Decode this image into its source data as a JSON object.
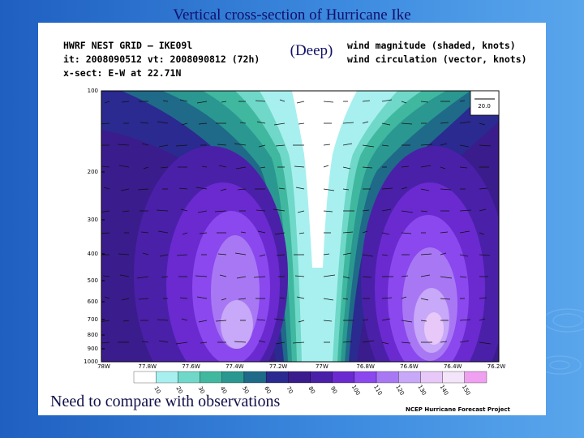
{
  "slide": {
    "title": "Vertical cross-section of Hurricane Ike",
    "subtitle": "(Deep)",
    "note": "Need to compare with observations"
  },
  "figure": {
    "header_left": [
      "HWRF NEST GRID – IKE09l",
      "it: 2008090512  vt: 2008090812 (72h)",
      "x-sect: E-W at 22.71N"
    ],
    "header_right": [
      "wind magnitude (shaded, knots)",
      "wind circulation (vector, knots)"
    ],
    "y_labels": [
      "100",
      "200",
      "300",
      "400",
      "500",
      "600",
      "700",
      "800",
      "900",
      "1000"
    ],
    "x_labels": [
      "78W",
      "77.8W",
      "77.6W",
      "77.4W",
      "77.2W",
      "77W",
      "76.8W",
      "76.6W",
      "76.4W",
      "76.2W"
    ],
    "vector_key": "20.0",
    "colorbar_labels": [
      "10",
      "20",
      "30",
      "40",
      "50",
      "60",
      "70",
      "80",
      "90",
      "100",
      "110",
      "120",
      "130",
      "140",
      "150"
    ],
    "credit": "NCEP Hurricane Forecast Project"
  }
}
